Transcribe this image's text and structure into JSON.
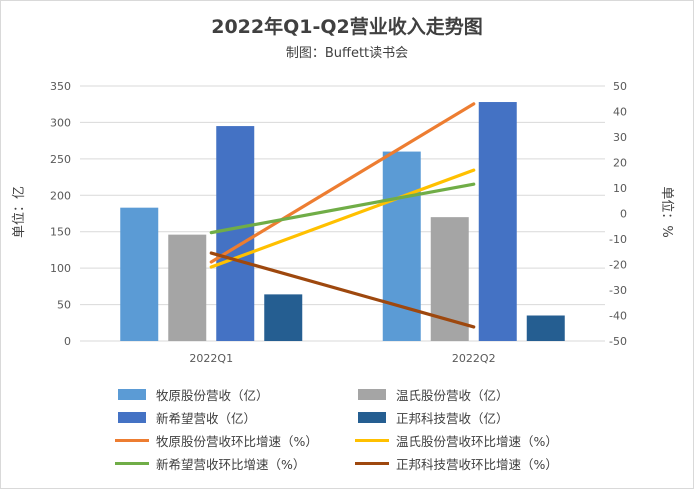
{
  "chart_data": {
    "type": "bar",
    "title": "2022年Q1-Q2营业收入走势图",
    "subtitle": "制图：Buffett读书会",
    "categories": [
      "2022Q1",
      "2022Q2"
    ],
    "y_left": {
      "label": "单位：亿",
      "min": 0,
      "max": 350,
      "step": 50,
      "ticks": [
        "0",
        "50",
        "100",
        "150",
        "200",
        "250",
        "300",
        "350"
      ]
    },
    "y_right": {
      "label": "单位：%",
      "min": -50,
      "max": 50,
      "step": 10,
      "ticks": [
        "-50",
        "-40",
        "-30",
        "-20",
        "-10",
        "0",
        "10",
        "20",
        "30",
        "40",
        "50"
      ]
    },
    "bar_series": [
      {
        "name": "牧原股份营收（亿）",
        "color": "#5b9bd5",
        "values": [
          183,
          260
        ]
      },
      {
        "name": "温氏股份营收（亿）",
        "color": "#a5a5a5",
        "values": [
          146,
          170
        ]
      },
      {
        "name": "新希望营收（亿）",
        "color": "#4472c4",
        "values": [
          295,
          328
        ]
      },
      {
        "name": "正邦科技营收（亿）",
        "color": "#255e91",
        "values": [
          64,
          35
        ]
      }
    ],
    "line_series": [
      {
        "name": "牧原股份营收环比增速（%）",
        "color": "#ed7d31",
        "values": [
          -19,
          43
        ]
      },
      {
        "name": "温氏股份营收环比增速（%）",
        "color": "#ffc000",
        "values": [
          -21,
          17
        ]
      },
      {
        "name": "新希望营收环比增速（%）",
        "color": "#70ad47",
        "values": [
          -7.5,
          11.5
        ]
      },
      {
        "name": "正邦科技营收环比增速（%）",
        "color": "#9e480e",
        "values": [
          -15.5,
          -44.5
        ]
      }
    ],
    "gridlines": true,
    "legend_position": "bottom"
  }
}
